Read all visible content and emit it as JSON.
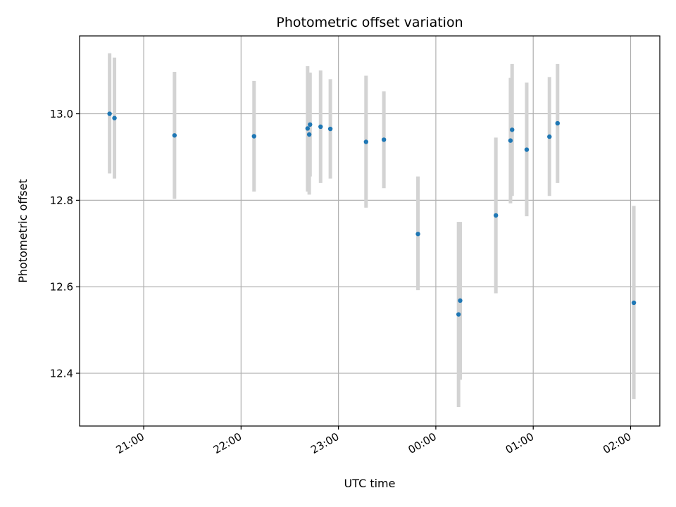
{
  "chart_data": {
    "type": "scatter",
    "title": "Photometric offset variation",
    "xlabel": "UTC time",
    "ylabel": "Photometric offset",
    "grid": true,
    "legend": "none",
    "x_tick_labels": [
      "21:00",
      "22:00",
      "23:00",
      "00:00",
      "01:00",
      "02:00"
    ],
    "x_tick_minutes": [
      1260,
      1320,
      1380,
      1440,
      1500,
      1560
    ],
    "xlim": [
      1220.5,
      1578
    ],
    "y_ticks": [
      12.4,
      12.6,
      12.8,
      13.0
    ],
    "y_tick_labels": [
      "12.4",
      "12.6",
      "12.8",
      "13.0"
    ],
    "ylim": [
      12.278,
      13.18
    ],
    "colors": {
      "marker": "#1f77b4",
      "errorbar": "#d3d3d3",
      "grid": "#b0b0b0"
    },
    "points": [
      {
        "t": "20:39",
        "tmin": 1239.0,
        "y": 13.0,
        "ylo": 12.862,
        "yhi": 13.14
      },
      {
        "t": "20:42",
        "tmin": 1242.0,
        "y": 12.99,
        "ylo": 12.85,
        "yhi": 13.13
      },
      {
        "t": "21:19",
        "tmin": 1279.0,
        "y": 12.95,
        "ylo": 12.803,
        "yhi": 13.097
      },
      {
        "t": "22:08",
        "tmin": 1328.0,
        "y": 12.948,
        "ylo": 12.82,
        "yhi": 13.076
      },
      {
        "t": "22:41",
        "tmin": 1361.0,
        "y": 12.966,
        "ylo": 12.82,
        "yhi": 13.11
      },
      {
        "t": "22:42",
        "tmin": 1362.0,
        "y": 12.952,
        "ylo": 12.813,
        "yhi": 13.095
      },
      {
        "t": "22:43",
        "tmin": 1362.5,
        "y": 12.975,
        "ylo": 12.855,
        "yhi": 13.095
      },
      {
        "t": "22:49",
        "tmin": 1369.0,
        "y": 12.97,
        "ylo": 12.84,
        "yhi": 13.1
      },
      {
        "t": "22:55",
        "tmin": 1375.0,
        "y": 12.965,
        "ylo": 12.85,
        "yhi": 13.08
      },
      {
        "t": "23:17",
        "tmin": 1397.0,
        "y": 12.935,
        "ylo": 12.783,
        "yhi": 13.088
      },
      {
        "t": "23:28",
        "tmin": 1408.0,
        "y": 12.94,
        "ylo": 12.828,
        "yhi": 13.052
      },
      {
        "t": "23:49",
        "tmin": 1429.0,
        "y": 12.722,
        "ylo": 12.592,
        "yhi": 12.855
      },
      {
        "t": "00:14",
        "tmin": 1454.0,
        "y": 12.536,
        "ylo": 12.322,
        "yhi": 12.75
      },
      {
        "t": "00:15",
        "tmin": 1455.0,
        "y": 12.568,
        "ylo": 12.385,
        "yhi": 12.75
      },
      {
        "t": "00:37",
        "tmin": 1477.0,
        "y": 12.765,
        "ylo": 12.585,
        "yhi": 12.945
      },
      {
        "t": "00:46",
        "tmin": 1486.0,
        "y": 12.938,
        "ylo": 12.793,
        "yhi": 13.083
      },
      {
        "t": "00:47",
        "tmin": 1487.0,
        "y": 12.963,
        "ylo": 12.81,
        "yhi": 13.115
      },
      {
        "t": "00:56",
        "tmin": 1496.0,
        "y": 12.917,
        "ylo": 12.763,
        "yhi": 13.072
      },
      {
        "t": "01:10",
        "tmin": 1510.0,
        "y": 12.947,
        "ylo": 12.81,
        "yhi": 13.085
      },
      {
        "t": "01:15",
        "tmin": 1515.0,
        "y": 12.978,
        "ylo": 12.84,
        "yhi": 13.115
      },
      {
        "t": "02:02",
        "tmin": 1562.0,
        "y": 12.563,
        "ylo": 12.34,
        "yhi": 12.787
      }
    ]
  }
}
